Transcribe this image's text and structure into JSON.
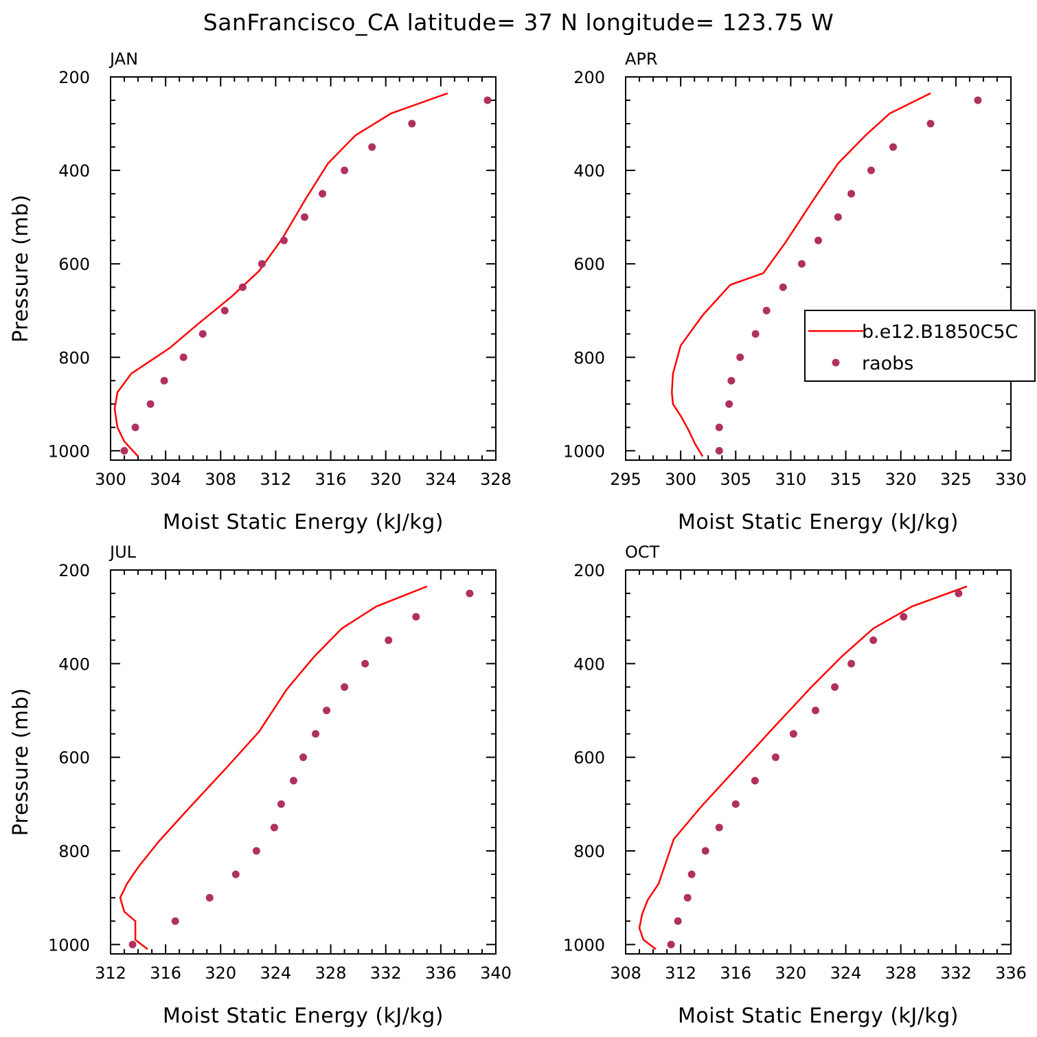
{
  "figure": {
    "title": "SanFrancisco_CA  latitude= 37 N longitude= 123.75 W",
    "series_colors": {
      "model": "#ff0000",
      "raobs": "#b03060"
    },
    "legend": {
      "model_label": "b.e12.B1850C5C",
      "obs_label": "raobs",
      "placement": "right, APR panel"
    }
  },
  "chart_data": [
    {
      "type": "line",
      "panel": "JAN",
      "title": "JAN",
      "xlabel": "Moist Static Energy (kJ/kg)",
      "ylabel": "Pressure (mb)",
      "xlim": [
        300,
        328
      ],
      "ylim": [
        1000,
        200
      ],
      "xticks": [
        300,
        304,
        308,
        312,
        316,
        320,
        324,
        328
      ],
      "yticks": [
        200,
        400,
        600,
        800,
        1000
      ],
      "series": [
        {
          "kind": "line",
          "x": [
            302.0,
            301.0,
            300.5,
            300.3,
            300.5,
            301.5,
            304.3,
            306.3,
            308.8,
            310.8,
            312.5,
            314.2,
            315.8,
            317.8,
            320.4,
            324.5
          ],
          "y": [
            1012,
            980,
            950,
            910,
            875,
            835,
            780,
            730,
            670,
            615,
            545,
            460,
            385,
            325,
            278,
            235
          ]
        },
        {
          "kind": "markers",
          "x": [
            301.0,
            301.8,
            302.9,
            303.9,
            305.3,
            306.7,
            308.3,
            309.6,
            311.0,
            312.6,
            314.1,
            315.4,
            317.0,
            319.0,
            321.9,
            327.4
          ],
          "y": [
            1000,
            950,
            900,
            850,
            800,
            750,
            700,
            650,
            600,
            550,
            500,
            450,
            400,
            350,
            300,
            250
          ]
        }
      ]
    },
    {
      "type": "line",
      "panel": "APR",
      "title": "APR",
      "xlabel": "Moist Static Energy (kJ/kg)",
      "ylabel": "",
      "xlim": [
        295,
        330
      ],
      "ylim": [
        1000,
        200
      ],
      "xticks": [
        295,
        300,
        305,
        310,
        315,
        320,
        325,
        330
      ],
      "yticks": [
        200,
        400,
        600,
        800,
        1000
      ],
      "series": [
        {
          "name": "b.e12.B1850C5C",
          "kind": "line",
          "x": [
            302.0,
            301.3,
            300.7,
            300.0,
            299.3,
            299.2,
            299.3,
            300.0,
            302.0,
            304.5,
            307.5,
            309.5,
            312.0,
            314.3,
            316.8,
            319.0,
            322.7
          ],
          "y": [
            1012,
            985,
            955,
            925,
            900,
            875,
            835,
            775,
            710,
            645,
            620,
            555,
            465,
            385,
            325,
            278,
            235
          ]
        },
        {
          "name": "raobs",
          "kind": "markers",
          "x": [
            303.5,
            303.5,
            304.4,
            304.6,
            305.4,
            306.8,
            307.8,
            309.3,
            311.0,
            312.5,
            314.3,
            315.5,
            317.3,
            319.3,
            322.7,
            327.0
          ],
          "y": [
            1000,
            950,
            900,
            850,
            800,
            750,
            700,
            650,
            600,
            550,
            500,
            450,
            400,
            350,
            300,
            250
          ]
        }
      ]
    },
    {
      "type": "line",
      "panel": "JUL",
      "title": "JUL",
      "xlabel": "Moist Static Energy (kJ/kg)",
      "ylabel": "Pressure (mb)",
      "xlim": [
        312,
        340
      ],
      "ylim": [
        1000,
        200
      ],
      "xticks": [
        312,
        316,
        320,
        324,
        328,
        332,
        336,
        340
      ],
      "yticks": [
        200,
        400,
        600,
        800,
        1000
      ],
      "series": [
        {
          "kind": "line",
          "x": [
            314.7,
            313.8,
            313.8,
            313.8,
            313.0,
            312.7,
            313.2,
            314.0,
            315.5,
            317.5,
            320.5,
            322.8,
            324.8,
            326.8,
            328.8,
            331.3,
            335.0
          ],
          "y": [
            1010,
            990,
            975,
            950,
            930,
            900,
            870,
            835,
            780,
            715,
            620,
            545,
            455,
            385,
            325,
            278,
            235
          ]
        },
        {
          "kind": "markers",
          "x": [
            313.6,
            316.7,
            319.2,
            321.1,
            322.6,
            323.9,
            324.4,
            325.3,
            326.0,
            326.9,
            327.7,
            329.0,
            330.5,
            332.2,
            334.2,
            338.1
          ],
          "y": [
            1000,
            950,
            900,
            850,
            800,
            750,
            700,
            650,
            600,
            550,
            500,
            450,
            400,
            350,
            300,
            250
          ]
        }
      ]
    },
    {
      "type": "line",
      "panel": "OCT",
      "title": "OCT",
      "xlabel": "Moist Static Energy (kJ/kg)",
      "ylabel": "",
      "xlim": [
        308,
        336
      ],
      "ylim": [
        1000,
        200
      ],
      "xticks": [
        308,
        312,
        316,
        320,
        324,
        328,
        332,
        336
      ],
      "yticks": [
        200,
        400,
        600,
        800,
        1000
      ],
      "series": [
        {
          "kind": "line",
          "x": [
            310.2,
            309.3,
            309.0,
            309.2,
            309.6,
            310.4,
            311.5,
            313.5,
            316.0,
            318.8,
            321.5,
            323.7,
            326.0,
            328.8,
            332.8
          ],
          "y": [
            1010,
            990,
            965,
            935,
            905,
            870,
            775,
            705,
            625,
            535,
            450,
            385,
            325,
            278,
            235
          ]
        },
        {
          "kind": "markers",
          "x": [
            311.3,
            311.8,
            312.5,
            312.8,
            313.8,
            314.8,
            316.0,
            317.4,
            318.9,
            320.2,
            321.8,
            323.2,
            324.4,
            326.0,
            328.2,
            332.2
          ],
          "y": [
            1000,
            950,
            900,
            850,
            800,
            750,
            700,
            650,
            600,
            550,
            500,
            450,
            400,
            350,
            300,
            250
          ]
        }
      ]
    }
  ]
}
